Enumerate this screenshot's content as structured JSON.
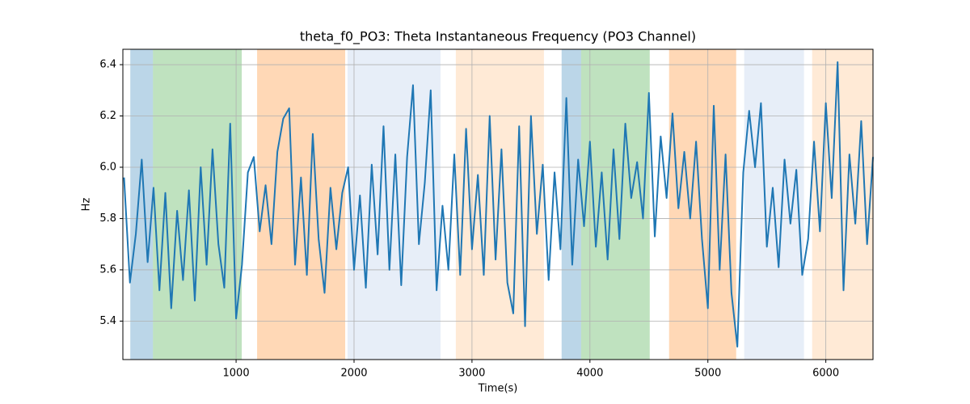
{
  "chart_data": {
    "type": "line",
    "title": "theta_f0_PO3: Theta Instantaneous Frequency (PO3 Channel)",
    "x_label": "Time(s)",
    "y_label": "Hz",
    "xlim": [
      40,
      6400
    ],
    "ylim": [
      5.25,
      6.46
    ],
    "xticks": [
      1000,
      2000,
      3000,
      4000,
      5000,
      6000
    ],
    "yticks": [
      5.4,
      5.6,
      5.8,
      {
        "value": 6,
        "label": "6.0"
      },
      6.2,
      6.4
    ],
    "grid": true,
    "spans": [
      {
        "x0": 103,
        "x1": 295,
        "color": "#1f77b4"
      },
      {
        "x0": 295,
        "x1": 1048,
        "color": "#2ca02c"
      },
      {
        "x0": 1178,
        "x1": 1925,
        "color": "#ff7f0e"
      },
      {
        "x0": 1945,
        "x1": 2733,
        "color": "#aec7e8"
      },
      {
        "x0": 2863,
        "x1": 3610,
        "color": "#ffbb78"
      },
      {
        "x0": 3760,
        "x1": 3925,
        "color": "#1f77b4"
      },
      {
        "x0": 3925,
        "x1": 4507,
        "color": "#2ca02c"
      },
      {
        "x0": 4671,
        "x1": 5240,
        "color": "#ff7f0e"
      },
      {
        "x0": 5308,
        "x1": 5815,
        "color": "#aec7e8"
      },
      {
        "x0": 5884,
        "x1": 6397,
        "color": "#ffbb78"
      }
    ],
    "series": [
      {
        "color": "#1f77b4",
        "x": [
          50,
          100,
          150,
          200,
          250,
          300,
          350,
          400,
          450,
          500,
          550,
          600,
          650,
          700,
          750,
          800,
          850,
          900,
          950,
          1000,
          1050,
          1100,
          1150,
          1200,
          1250,
          1300,
          1350,
          1400,
          1450,
          1500,
          1550,
          1600,
          1650,
          1700,
          1750,
          1800,
          1850,
          1900,
          1950,
          2000,
          2050,
          2100,
          2150,
          2200,
          2250,
          2300,
          2350,
          2400,
          2450,
          2500,
          2550,
          2600,
          2650,
          2700,
          2750,
          2800,
          2850,
          2900,
          2950,
          3000,
          3050,
          3100,
          3150,
          3200,
          3250,
          3300,
          3350,
          3400,
          3450,
          3500,
          3550,
          3600,
          3650,
          3700,
          3750,
          3800,
          3850,
          3900,
          3950,
          4000,
          4050,
          4100,
          4150,
          4200,
          4250,
          4300,
          4350,
          4400,
          4450,
          4500,
          4550,
          4600,
          4650,
          4700,
          4750,
          4800,
          4850,
          4900,
          4950,
          5000,
          5050,
          5100,
          5150,
          5200,
          5250,
          5300,
          5350,
          5400,
          5450,
          5500,
          5550,
          5600,
          5650,
          5700,
          5750,
          5800,
          5850,
          5900,
          5950,
          6000,
          6050,
          6100,
          6150,
          6200,
          6250,
          6300,
          6350,
          6400
        ],
        "values": [
          5.96,
          5.55,
          5.74,
          6.03,
          5.63,
          5.92,
          5.52,
          5.9,
          5.45,
          5.83,
          5.56,
          5.91,
          5.48,
          6.0,
          5.62,
          6.07,
          5.7,
          5.53,
          6.17,
          5.41,
          5.62,
          5.98,
          6.04,
          5.75,
          5.93,
          5.7,
          6.06,
          6.19,
          6.23,
          5.62,
          5.96,
          5.58,
          6.13,
          5.72,
          5.51,
          5.92,
          5.68,
          5.9,
          6.0,
          5.6,
          5.89,
          5.53,
          6.01,
          5.66,
          6.16,
          5.6,
          6.05,
          5.54,
          6.04,
          6.32,
          5.7,
          5.94,
          6.3,
          5.52,
          5.85,
          5.6,
          6.05,
          5.58,
          6.15,
          5.68,
          5.97,
          5.58,
          6.2,
          5.64,
          6.07,
          5.55,
          5.43,
          6.16,
          5.38,
          6.2,
          5.74,
          6.01,
          5.56,
          5.98,
          5.68,
          6.27,
          5.62,
          6.03,
          5.77,
          6.1,
          5.69,
          5.98,
          5.64,
          6.07,
          5.72,
          6.17,
          5.88,
          6.02,
          5.8,
          6.29,
          5.73,
          6.12,
          5.88,
          6.21,
          5.84,
          6.06,
          5.8,
          6.1,
          5.72,
          5.45,
          6.24,
          5.6,
          6.05,
          5.51,
          5.3,
          5.98,
          6.22,
          6.0,
          6.25,
          5.69,
          5.92,
          5.61,
          6.03,
          5.78,
          5.99,
          5.58,
          5.72,
          6.1,
          5.75,
          6.25,
          5.88,
          6.41,
          5.52,
          6.05,
          5.78,
          6.18,
          5.7,
          6.04
        ]
      }
    ]
  }
}
